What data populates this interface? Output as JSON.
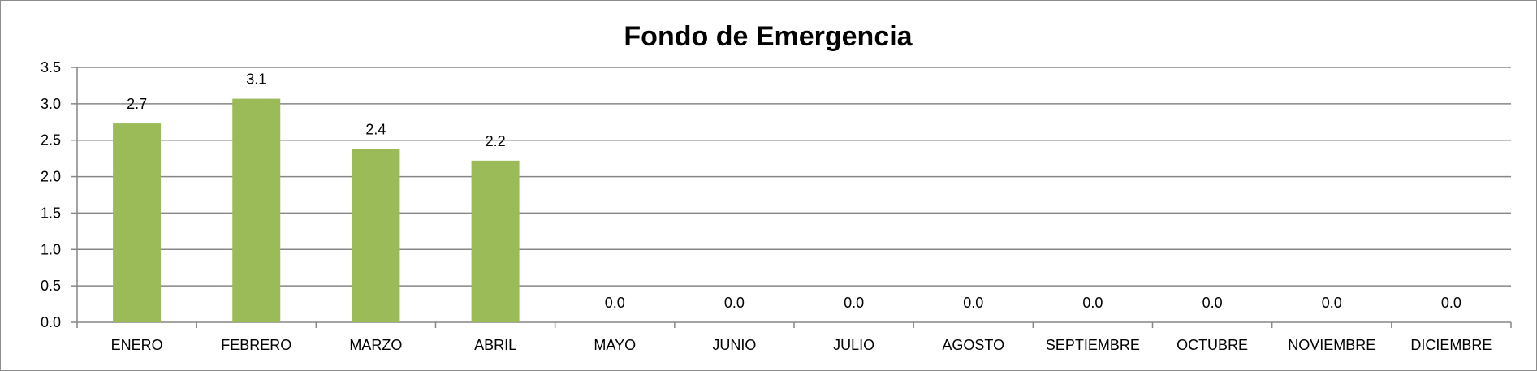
{
  "chart_data": {
    "type": "bar",
    "title": "Fondo de Emergencia",
    "xlabel": "",
    "ylabel": "",
    "ylim": [
      0,
      3.5
    ],
    "yticks": [
      "0.0",
      "0.5",
      "1.0",
      "1.5",
      "2.0",
      "2.5",
      "3.0",
      "3.5"
    ],
    "categories": [
      "ENERO",
      "FEBRERO",
      "MARZO",
      "ABRIL",
      "MAYO",
      "JUNIO",
      "JULIO",
      "AGOSTO",
      "SEPTIEMBRE",
      "OCTUBRE",
      "NOVIEMBRE",
      "DICIEMBRE"
    ],
    "values": [
      2.73,
      3.07,
      2.38,
      2.22,
      0,
      0,
      0,
      0,
      0,
      0,
      0,
      0
    ],
    "data_labels": [
      "2.7",
      "3.1",
      "2.4",
      "2.2",
      "0.0",
      "0.0",
      "0.0",
      "0.0",
      "0.0",
      "0.0",
      "0.0",
      "0.0"
    ],
    "bar_color": "#9bbb59",
    "gridlines": true,
    "legend": "none"
  }
}
